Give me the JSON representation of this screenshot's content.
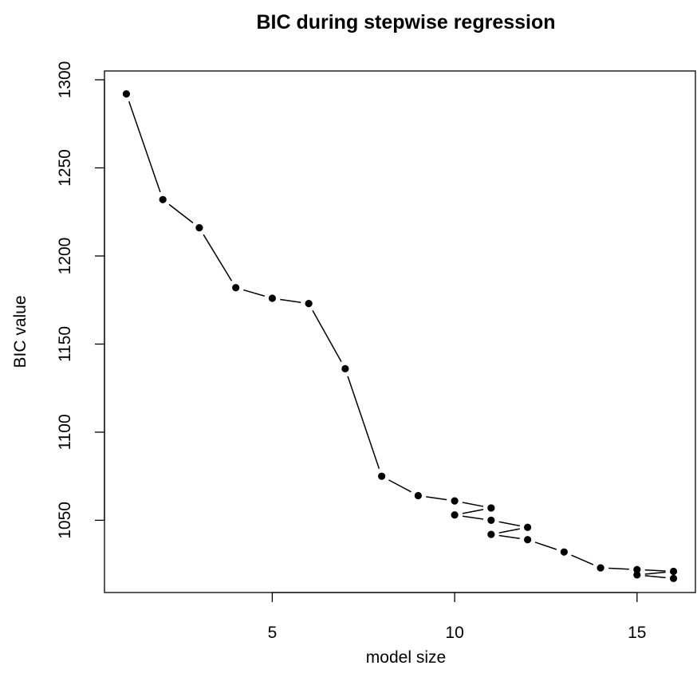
{
  "chart_data": {
    "type": "scatter",
    "title": "BIC during stepwise regression",
    "xlabel": "model size",
    "ylabel": "BIC value",
    "xlim": [
      0.4,
      16.6
    ],
    "ylim": [
      1009,
      1305
    ],
    "x_ticks": [
      5,
      10,
      15
    ],
    "y_ticks": [
      1050,
      1100,
      1150,
      1200,
      1250,
      1300
    ],
    "grid": false,
    "legend": "none",
    "points": [
      {
        "x": 1,
        "y": 1292
      },
      {
        "x": 2,
        "y": 1232
      },
      {
        "x": 3,
        "y": 1216
      },
      {
        "x": 4,
        "y": 1182
      },
      {
        "x": 5,
        "y": 1176
      },
      {
        "x": 6,
        "y": 1173
      },
      {
        "x": 7,
        "y": 1136
      },
      {
        "x": 8,
        "y": 1075
      },
      {
        "x": 9,
        "y": 1064
      },
      {
        "x": 10,
        "y": 1061
      },
      {
        "x": 10,
        "y": 1053
      },
      {
        "x": 11,
        "y": 1057
      },
      {
        "x": 11,
        "y": 1050
      },
      {
        "x": 11,
        "y": 1042
      },
      {
        "x": 12,
        "y": 1046
      },
      {
        "x": 12,
        "y": 1039
      },
      {
        "x": 13,
        "y": 1032
      },
      {
        "x": 14,
        "y": 1023
      },
      {
        "x": 15,
        "y": 1022
      },
      {
        "x": 15,
        "y": 1019
      },
      {
        "x": 16,
        "y": 1021
      },
      {
        "x": 16,
        "y": 1017
      }
    ],
    "segments": [
      [
        1,
        1292,
        2,
        1232
      ],
      [
        2,
        1232,
        3,
        1216
      ],
      [
        3,
        1216,
        4,
        1182
      ],
      [
        4,
        1182,
        5,
        1176
      ],
      [
        5,
        1176,
        6,
        1173
      ],
      [
        6,
        1173,
        7,
        1136
      ],
      [
        7,
        1136,
        8,
        1075
      ],
      [
        8,
        1075,
        9,
        1064
      ],
      [
        9,
        1064,
        10,
        1061
      ],
      [
        10,
        1061,
        11,
        1057
      ],
      [
        10,
        1053,
        11,
        1057
      ],
      [
        10,
        1053,
        11,
        1050
      ],
      [
        11,
        1050,
        12,
        1046
      ],
      [
        11,
        1042,
        12,
        1046
      ],
      [
        11,
        1042,
        12,
        1039
      ],
      [
        12,
        1039,
        13,
        1032
      ],
      [
        13,
        1032,
        14,
        1023
      ],
      [
        14,
        1023,
        15,
        1022
      ],
      [
        15,
        1022,
        16,
        1021
      ],
      [
        15,
        1019,
        16,
        1021
      ],
      [
        15,
        1019,
        16,
        1017
      ]
    ],
    "colors": {
      "points": "#000000",
      "lines": "#000000",
      "axis": "#000000"
    }
  }
}
